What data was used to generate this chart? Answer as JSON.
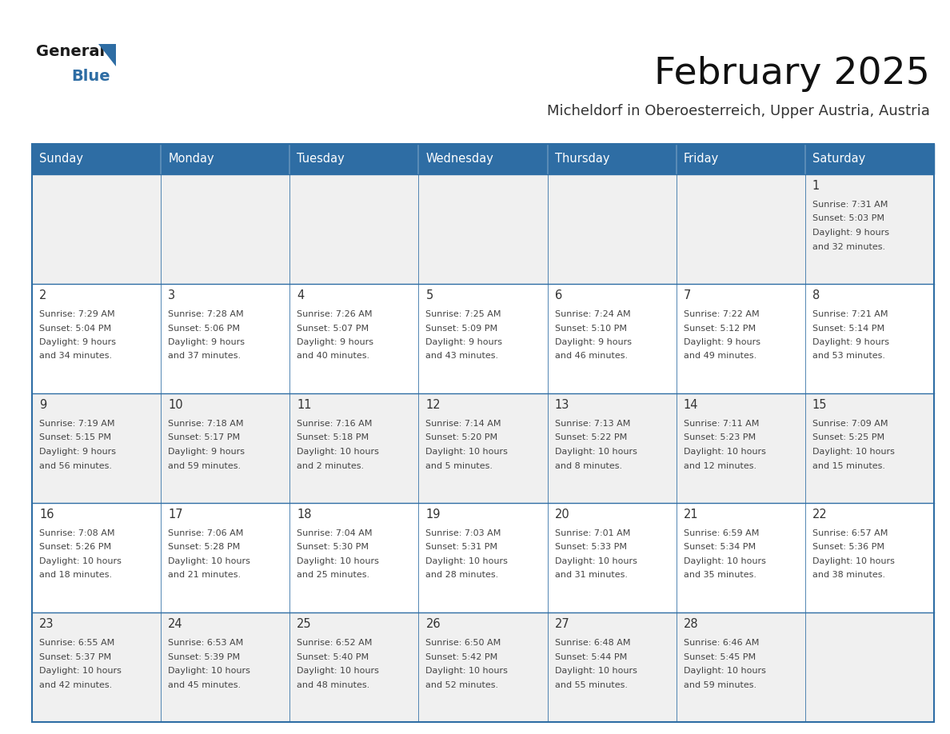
{
  "title": "February 2025",
  "subtitle": "Micheldorf in Oberoesterreich, Upper Austria, Austria",
  "days_of_week": [
    "Sunday",
    "Monday",
    "Tuesday",
    "Wednesday",
    "Thursday",
    "Friday",
    "Saturday"
  ],
  "header_bg": "#2E6DA4",
  "header_text": "#FFFFFF",
  "cell_bg_even": "#FFFFFF",
  "cell_bg_odd": "#F0F0F0",
  "border_color": "#2E6DA4",
  "text_color": "#444444",
  "day_number_color": "#333333",
  "logo_general_color": "#1a1a1a",
  "logo_blue_color": "#2E6DA4",
  "calendar_data": [
    {
      "day": 1,
      "row": 0,
      "col": 6,
      "sunrise": "7:31 AM",
      "sunset": "5:03 PM",
      "daylight_h": "9 hours",
      "daylight_m": "and 32 minutes."
    },
    {
      "day": 2,
      "row": 1,
      "col": 0,
      "sunrise": "7:29 AM",
      "sunset": "5:04 PM",
      "daylight_h": "9 hours",
      "daylight_m": "and 34 minutes."
    },
    {
      "day": 3,
      "row": 1,
      "col": 1,
      "sunrise": "7:28 AM",
      "sunset": "5:06 PM",
      "daylight_h": "9 hours",
      "daylight_m": "and 37 minutes."
    },
    {
      "day": 4,
      "row": 1,
      "col": 2,
      "sunrise": "7:26 AM",
      "sunset": "5:07 PM",
      "daylight_h": "9 hours",
      "daylight_m": "and 40 minutes."
    },
    {
      "day": 5,
      "row": 1,
      "col": 3,
      "sunrise": "7:25 AM",
      "sunset": "5:09 PM",
      "daylight_h": "9 hours",
      "daylight_m": "and 43 minutes."
    },
    {
      "day": 6,
      "row": 1,
      "col": 4,
      "sunrise": "7:24 AM",
      "sunset": "5:10 PM",
      "daylight_h": "9 hours",
      "daylight_m": "and 46 minutes."
    },
    {
      "day": 7,
      "row": 1,
      "col": 5,
      "sunrise": "7:22 AM",
      "sunset": "5:12 PM",
      "daylight_h": "9 hours",
      "daylight_m": "and 49 minutes."
    },
    {
      "day": 8,
      "row": 1,
      "col": 6,
      "sunrise": "7:21 AM",
      "sunset": "5:14 PM",
      "daylight_h": "9 hours",
      "daylight_m": "and 53 minutes."
    },
    {
      "day": 9,
      "row": 2,
      "col": 0,
      "sunrise": "7:19 AM",
      "sunset": "5:15 PM",
      "daylight_h": "9 hours",
      "daylight_m": "and 56 minutes."
    },
    {
      "day": 10,
      "row": 2,
      "col": 1,
      "sunrise": "7:18 AM",
      "sunset": "5:17 PM",
      "daylight_h": "9 hours",
      "daylight_m": "and 59 minutes."
    },
    {
      "day": 11,
      "row": 2,
      "col": 2,
      "sunrise": "7:16 AM",
      "sunset": "5:18 PM",
      "daylight_h": "10 hours",
      "daylight_m": "and 2 minutes."
    },
    {
      "day": 12,
      "row": 2,
      "col": 3,
      "sunrise": "7:14 AM",
      "sunset": "5:20 PM",
      "daylight_h": "10 hours",
      "daylight_m": "and 5 minutes."
    },
    {
      "day": 13,
      "row": 2,
      "col": 4,
      "sunrise": "7:13 AM",
      "sunset": "5:22 PM",
      "daylight_h": "10 hours",
      "daylight_m": "and 8 minutes."
    },
    {
      "day": 14,
      "row": 2,
      "col": 5,
      "sunrise": "7:11 AM",
      "sunset": "5:23 PM",
      "daylight_h": "10 hours",
      "daylight_m": "and 12 minutes."
    },
    {
      "day": 15,
      "row": 2,
      "col": 6,
      "sunrise": "7:09 AM",
      "sunset": "5:25 PM",
      "daylight_h": "10 hours",
      "daylight_m": "and 15 minutes."
    },
    {
      "day": 16,
      "row": 3,
      "col": 0,
      "sunrise": "7:08 AM",
      "sunset": "5:26 PM",
      "daylight_h": "10 hours",
      "daylight_m": "and 18 minutes."
    },
    {
      "day": 17,
      "row": 3,
      "col": 1,
      "sunrise": "7:06 AM",
      "sunset": "5:28 PM",
      "daylight_h": "10 hours",
      "daylight_m": "and 21 minutes."
    },
    {
      "day": 18,
      "row": 3,
      "col": 2,
      "sunrise": "7:04 AM",
      "sunset": "5:30 PM",
      "daylight_h": "10 hours",
      "daylight_m": "and 25 minutes."
    },
    {
      "day": 19,
      "row": 3,
      "col": 3,
      "sunrise": "7:03 AM",
      "sunset": "5:31 PM",
      "daylight_h": "10 hours",
      "daylight_m": "and 28 minutes."
    },
    {
      "day": 20,
      "row": 3,
      "col": 4,
      "sunrise": "7:01 AM",
      "sunset": "5:33 PM",
      "daylight_h": "10 hours",
      "daylight_m": "and 31 minutes."
    },
    {
      "day": 21,
      "row": 3,
      "col": 5,
      "sunrise": "6:59 AM",
      "sunset": "5:34 PM",
      "daylight_h": "10 hours",
      "daylight_m": "and 35 minutes."
    },
    {
      "day": 22,
      "row": 3,
      "col": 6,
      "sunrise": "6:57 AM",
      "sunset": "5:36 PM",
      "daylight_h": "10 hours",
      "daylight_m": "and 38 minutes."
    },
    {
      "day": 23,
      "row": 4,
      "col": 0,
      "sunrise": "6:55 AM",
      "sunset": "5:37 PM",
      "daylight_h": "10 hours",
      "daylight_m": "and 42 minutes."
    },
    {
      "day": 24,
      "row": 4,
      "col": 1,
      "sunrise": "6:53 AM",
      "sunset": "5:39 PM",
      "daylight_h": "10 hours",
      "daylight_m": "and 45 minutes."
    },
    {
      "day": 25,
      "row": 4,
      "col": 2,
      "sunrise": "6:52 AM",
      "sunset": "5:40 PM",
      "daylight_h": "10 hours",
      "daylight_m": "and 48 minutes."
    },
    {
      "day": 26,
      "row": 4,
      "col": 3,
      "sunrise": "6:50 AM",
      "sunset": "5:42 PM",
      "daylight_h": "10 hours",
      "daylight_m": "and 52 minutes."
    },
    {
      "day": 27,
      "row": 4,
      "col": 4,
      "sunrise": "6:48 AM",
      "sunset": "5:44 PM",
      "daylight_h": "10 hours",
      "daylight_m": "and 55 minutes."
    },
    {
      "day": 28,
      "row": 4,
      "col": 5,
      "sunrise": "6:46 AM",
      "sunset": "5:45 PM",
      "daylight_h": "10 hours",
      "daylight_m": "and 59 minutes."
    }
  ],
  "num_rows": 5,
  "num_cols": 7,
  "figsize": [
    11.88,
    9.18
  ],
  "dpi": 100
}
